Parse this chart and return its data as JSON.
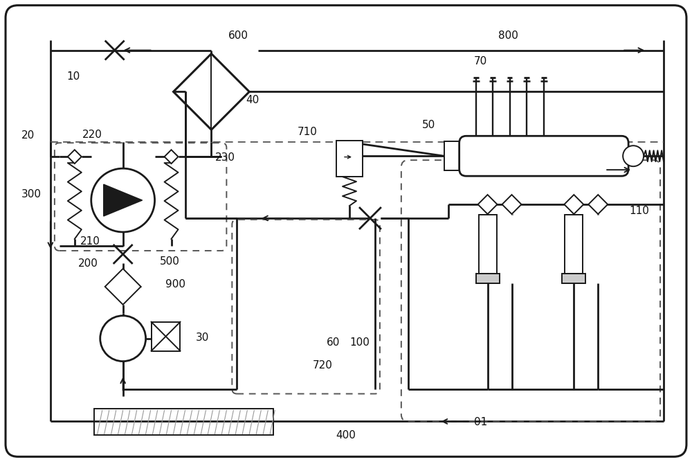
{
  "bg_color": "#ffffff",
  "line_color": "#1a1a1a",
  "lw_main": 2.0,
  "lw_thin": 1.4
}
